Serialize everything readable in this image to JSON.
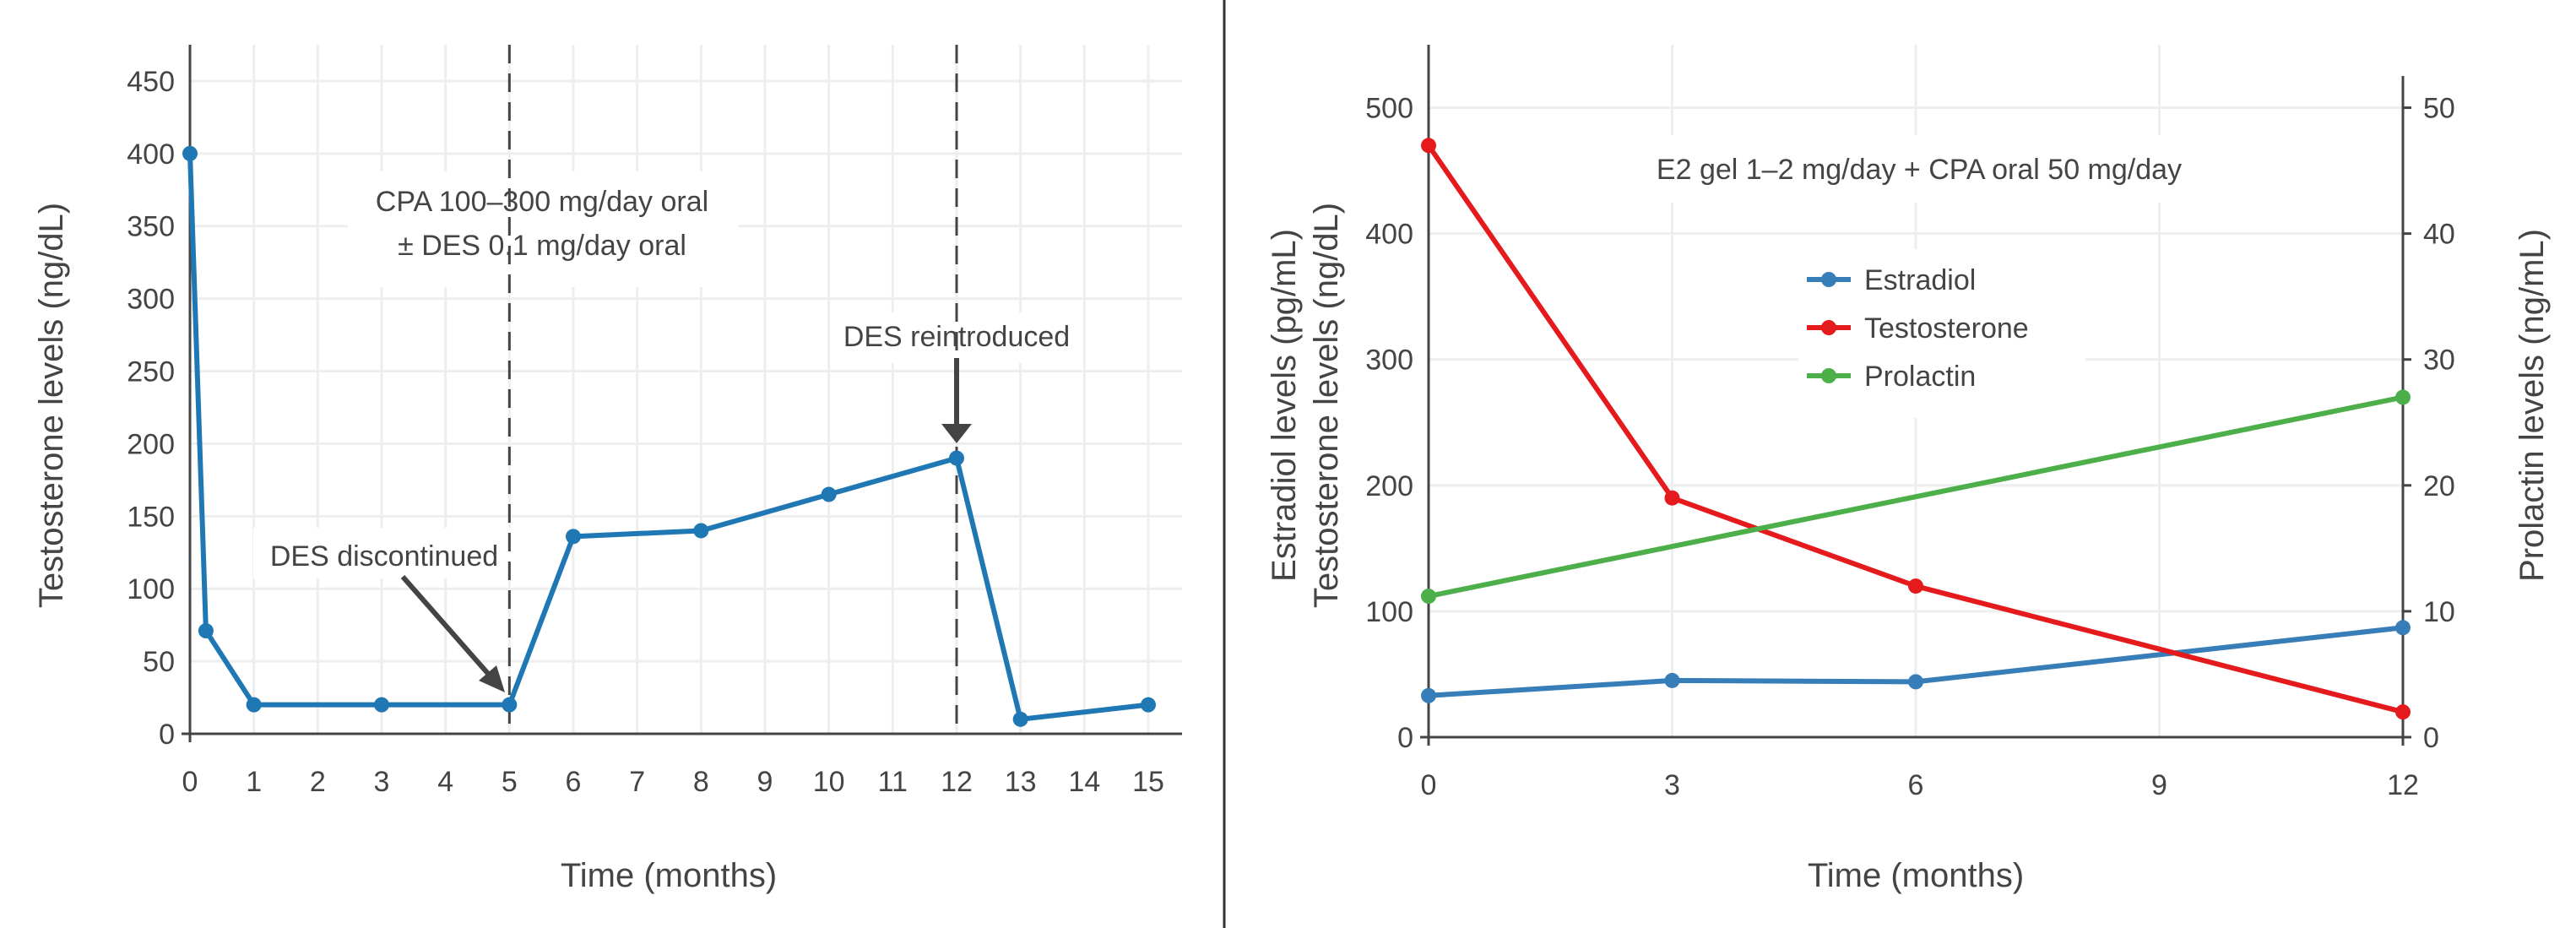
{
  "chart_data": [
    {
      "type": "line",
      "xlabel": "Time (months)",
      "ylabel": "Testosterone levels (ng/dL)",
      "xlim": [
        0,
        15
      ],
      "ylim": [
        0,
        475
      ],
      "x_ticks": [
        0,
        1,
        2,
        3,
        4,
        5,
        6,
        7,
        8,
        9,
        10,
        11,
        12,
        13,
        14,
        15
      ],
      "y_ticks": [
        0,
        50,
        100,
        150,
        200,
        250,
        300,
        350,
        400,
        450
      ],
      "grid": true,
      "series": [
        {
          "color": "#1f77b4",
          "x": [
            0,
            0.25,
            1,
            3,
            5,
            6,
            8,
            10,
            12,
            13,
            15
          ],
          "y": [
            400,
            71,
            20,
            20,
            20,
            136,
            140,
            165,
            190,
            10,
            20
          ]
        }
      ],
      "vlines": [
        5,
        12
      ],
      "annotations": {
        "regimen_line1": "CPA 100–300 mg/day oral",
        "regimen_line2": "± DES 0.1 mg/day oral",
        "des_discontinued": "DES discontinued",
        "des_reintroduced": "DES reintroduced"
      }
    },
    {
      "type": "line",
      "xlabel": "Time (months)",
      "ylabel_line1": "Estradiol levels (pg/mL)",
      "ylabel_line2": "Testosterone levels (ng/dL)",
      "y2label": "Prolactin levels (ng/mL)",
      "xlim": [
        0,
        12
      ],
      "ylim": [
        0,
        550
      ],
      "y2lim": [
        0,
        55
      ],
      "x_ticks": [
        0,
        3,
        6,
        9,
        12
      ],
      "y_ticks": [
        0,
        100,
        200,
        300,
        400,
        500
      ],
      "y2_ticks": [
        0,
        10,
        20,
        30,
        40,
        50
      ],
      "grid": true,
      "legend_position": "center",
      "annotation": "E2 gel 1–2 mg/day + CPA oral 50 mg/day",
      "series": [
        {
          "name": "Estradiol",
          "axis": "left",
          "color": "#377eb8",
          "x": [
            0,
            3,
            6,
            12
          ],
          "y": [
            33,
            45,
            44,
            87
          ]
        },
        {
          "name": "Testosterone",
          "axis": "left",
          "color": "#e41a1c",
          "x": [
            0,
            3,
            6,
            12
          ],
          "y": [
            470,
            190,
            120,
            20
          ]
        },
        {
          "name": "Prolactin",
          "axis": "right",
          "color": "#4daf4a",
          "x": [
            0,
            12
          ],
          "y": [
            11.2,
            27
          ]
        }
      ]
    }
  ]
}
